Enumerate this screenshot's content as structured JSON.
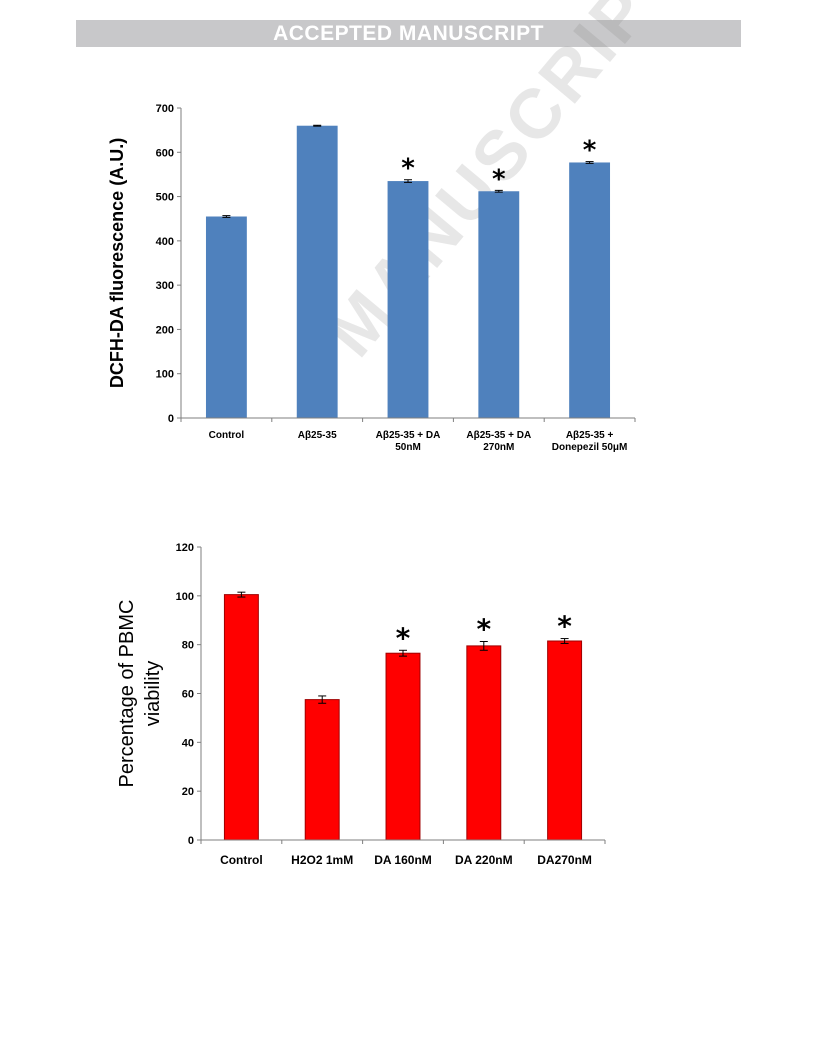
{
  "header": {
    "banner": "ACCEPTED MANUSCRIPT"
  },
  "watermark": {
    "text": "MANUSCRIPT"
  },
  "chart_data": [
    {
      "type": "bar",
      "categories": [
        [
          "Control"
        ],
        [
          "Aβ25-35"
        ],
        [
          "Aβ25-35 + DA",
          "50nM"
        ],
        [
          "Aβ25-35 +  DA",
          "270nM"
        ],
        [
          "Aβ25-35 +",
          "Donepezil 50μM"
        ]
      ],
      "values": [
        455,
        660,
        535,
        512,
        577
      ],
      "errors": [
        2,
        1,
        3,
        2,
        2
      ],
      "significance": [
        "",
        "",
        "*",
        "*",
        "*"
      ],
      "ylabel": "DCFH-DA fluorescence (A.U.)",
      "ylim": [
        0,
        700
      ],
      "yticks": [
        0,
        100,
        200,
        300,
        400,
        500,
        600,
        700
      ],
      "bar_color": "#4f81bd",
      "grid": false
    },
    {
      "type": "bar",
      "categories": [
        [
          "Control"
        ],
        [
          "H2O2 1mM"
        ],
        [
          "DA 160nM"
        ],
        [
          "DA 220nM"
        ],
        [
          "DA270nM"
        ]
      ],
      "values": [
        100.5,
        57.5,
        76.5,
        79.5,
        81.5
      ],
      "errors": [
        1,
        1.5,
        1.2,
        1.8,
        1.0
      ],
      "significance": [
        "",
        "",
        "*",
        "*",
        "*"
      ],
      "ylabel": [
        "Percentage of PBMC",
        "viability"
      ],
      "ylim": [
        0,
        120
      ],
      "yticks": [
        0,
        20,
        40,
        60,
        80,
        100,
        120
      ],
      "bar_color": "#ff0000",
      "grid": false
    }
  ]
}
